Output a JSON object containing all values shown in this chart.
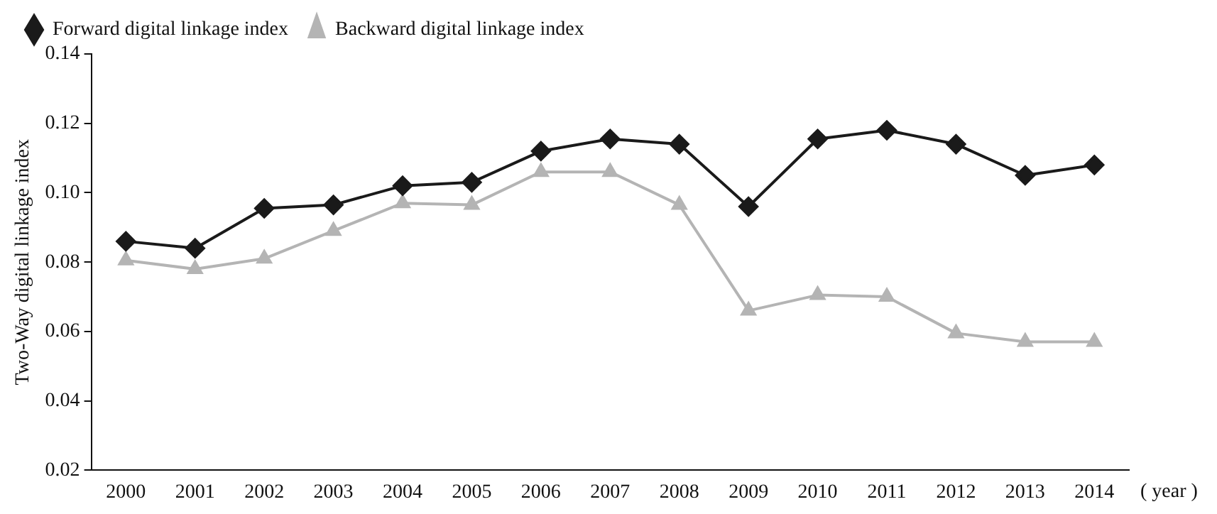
{
  "chart_data": {
    "type": "line",
    "xlabel": "( year )",
    "ylabel": "Two-Way digital linkage index",
    "categories": [
      "2000",
      "2001",
      "2002",
      "2003",
      "2004",
      "2005",
      "2006",
      "2007",
      "2008",
      "2009",
      "2010",
      "2011",
      "2012",
      "2013",
      "2014"
    ],
    "series": [
      {
        "name": "Forward digital linkage index",
        "color": "#1a1a1a",
        "marker": "diamond",
        "values": [
          0.086,
          0.084,
          0.0955,
          0.0965,
          0.102,
          0.103,
          0.112,
          0.1155,
          0.114,
          0.096,
          0.1155,
          0.118,
          0.114,
          0.105,
          0.108
        ]
      },
      {
        "name": "Backward digital linkage index",
        "color": "#b4b4b4",
        "marker": "triangle",
        "values": [
          0.0805,
          0.078,
          0.081,
          0.089,
          0.097,
          0.0965,
          0.106,
          0.106,
          0.0965,
          0.066,
          0.0705,
          0.07,
          0.0595,
          0.057,
          0.057
        ]
      }
    ],
    "ylim": [
      0.02,
      0.14
    ],
    "yticks": [
      0.02,
      0.04,
      0.06,
      0.08,
      {
        "value": 0.1,
        "label": "0.10"
      },
      0.12,
      0.14
    ],
    "grid": false,
    "legend": "top left",
    "line_style": "solid"
  }
}
